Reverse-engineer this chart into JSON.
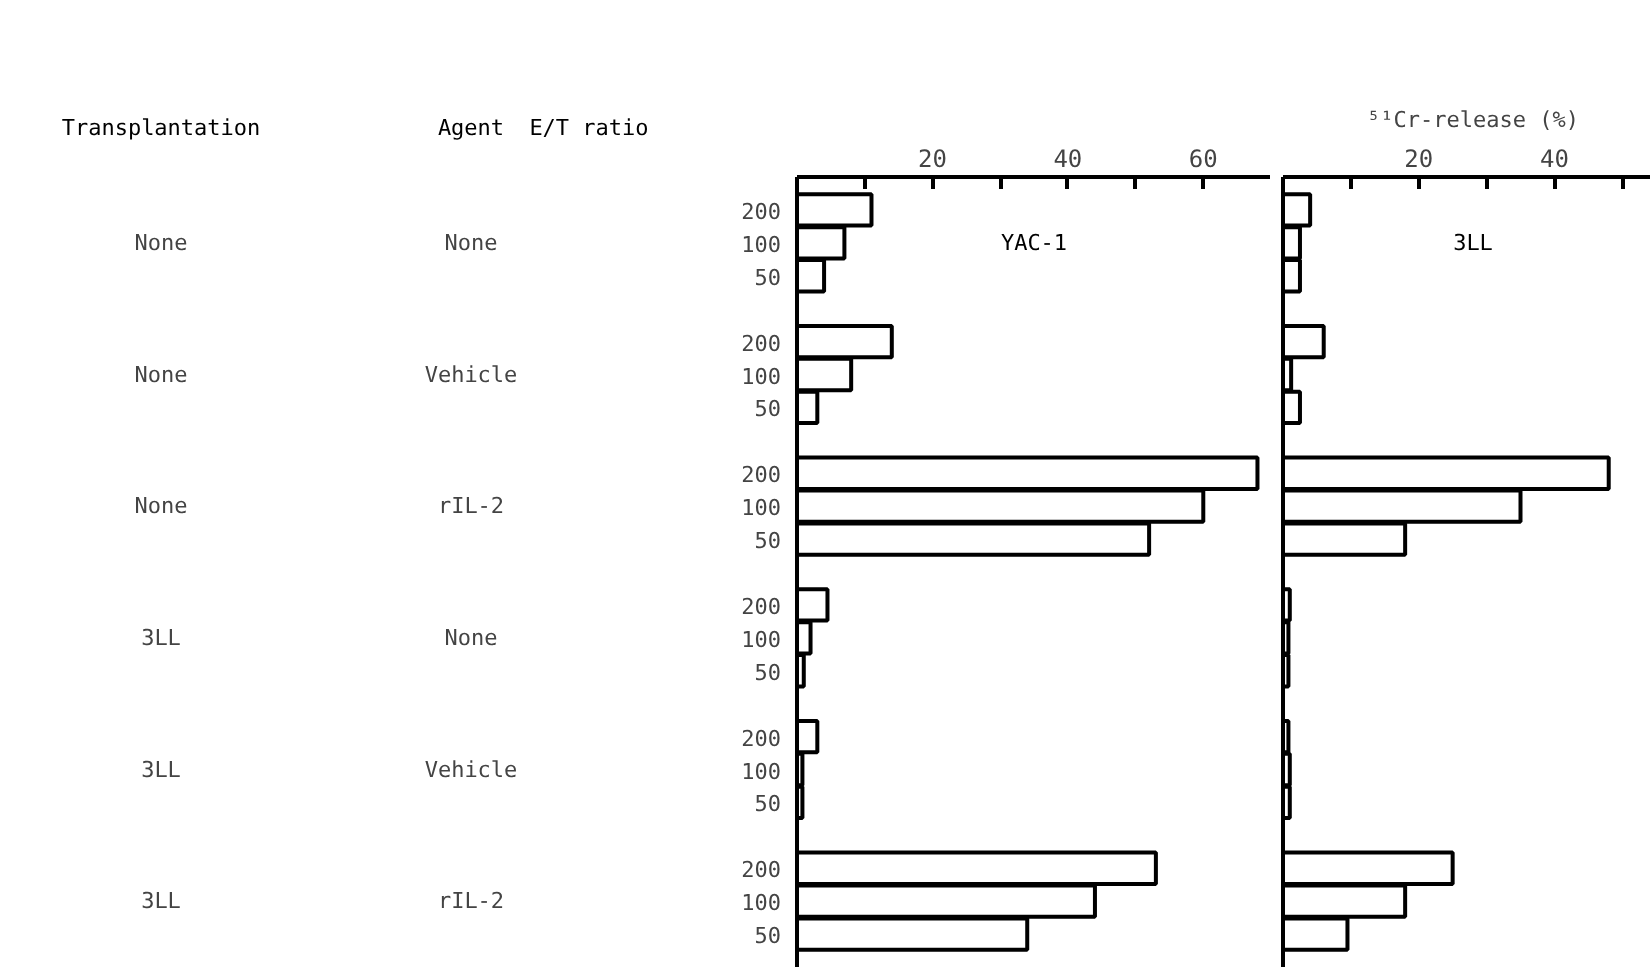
{
  "chart_data": [
    {
      "type": "bar",
      "orientation": "horizontal",
      "title": "YAC-1",
      "ylabel": "E/T ratio",
      "categories": [
        "200",
        "100",
        "50",
        null,
        "200",
        "100",
        "50",
        null,
        "200",
        "100",
        "50",
        null,
        "200",
        "100",
        "50",
        null,
        "200",
        "100",
        "50",
        null,
        "200",
        "100",
        "50"
      ],
      "values": [
        11,
        7,
        4,
        null,
        14,
        8,
        3,
        null,
        68,
        60,
        52,
        null,
        4.5,
        2,
        1,
        null,
        3,
        0.8,
        0.8,
        null,
        53,
        44,
        34
      ],
      "color": "#ffffff",
      "xlim": [
        0,
        70
      ],
      "xticks": [
        {
          "value": 10,
          "label": null
        },
        20,
        {
          "value": 30,
          "label": null
        },
        40,
        {
          "value": 50,
          "label": null
        },
        60
      ],
      "annotations": [
        "Transplantation",
        "Agent",
        "None",
        "None",
        "None",
        "Vehicle",
        "None",
        "rIL-2",
        "3LL",
        "None",
        "3LL",
        "Vehicle",
        "3LL",
        "rIL-2"
      ]
    },
    {
      "type": "bar",
      "orientation": "horizontal",
      "title": "3LL",
      "xlabel": "⁵¹Cr-release (%)",
      "tick_labels": "x",
      "categories": [
        "200",
        "100",
        "50",
        null,
        "200",
        "100",
        "50",
        null,
        "200",
        "100",
        "50",
        null,
        "200",
        "100",
        "50",
        null,
        "200",
        "100",
        "50",
        null,
        "200",
        "100",
        "50"
      ],
      "values": [
        4,
        2.5,
        2.5,
        null,
        6,
        1.2,
        2.5,
        null,
        48,
        35,
        18,
        null,
        1,
        0.8,
        0.8,
        null,
        0.8,
        1,
        1,
        null,
        25,
        18,
        9.5
      ],
      "color": "#ffffff",
      "xlim": [
        0,
        56
      ],
      "xticks": [
        {
          "value": 10,
          "label": null
        },
        20,
        {
          "value": 30,
          "label": null
        },
        40,
        {
          "value": 50,
          "label": null
        }
      ]
    }
  ]
}
